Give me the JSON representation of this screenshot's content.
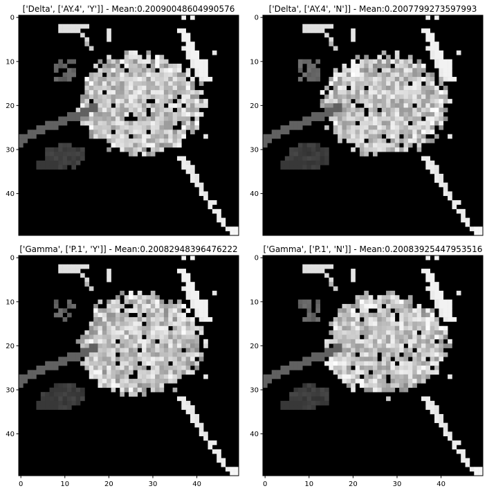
{
  "chart_data": [
    {
      "type": "heatmap",
      "title": "['Delta', ['AY.4', 'Y']] - Mean:0.20090048604990576",
      "xlim": [
        -0.5,
        49.5
      ],
      "ylim": [
        -0.5,
        49.5
      ],
      "y_inverted": true,
      "xticks": [],
      "yticks": [
        0,
        10,
        20,
        30,
        40
      ],
      "colormap": "gray",
      "background_value": 0,
      "pattern": "main",
      "seed": 11
    },
    {
      "type": "heatmap",
      "title": "['Delta', ['AY.4', 'N']] - Mean:0.2007799273597993",
      "xlim": [
        -0.5,
        49.5
      ],
      "ylim": [
        -0.5,
        49.5
      ],
      "y_inverted": true,
      "xticks": [],
      "yticks": [
        0,
        10,
        20,
        30,
        40
      ],
      "colormap": "gray",
      "background_value": 0,
      "pattern": "main",
      "seed": 23
    },
    {
      "type": "heatmap",
      "title": "['Gamma', ['P.1', 'Y']] - Mean:0.20082948396476222",
      "xlim": [
        -0.5,
        49.5
      ],
      "ylim": [
        -0.5,
        49.5
      ],
      "y_inverted": true,
      "xticks": [
        0,
        10,
        20,
        30,
        40
      ],
      "yticks": [
        0,
        10,
        20,
        30,
        40
      ],
      "colormap": "gray",
      "background_value": 0,
      "pattern": "main",
      "seed": 37
    },
    {
      "type": "heatmap",
      "title": "['Gamma', ['P.1', 'N']] - Mean:0.20083925447953516",
      "xlim": [
        -0.5,
        49.5
      ],
      "ylim": [
        -0.5,
        49.5
      ],
      "y_inverted": true,
      "xticks": [
        0,
        10,
        20,
        30,
        40
      ],
      "yticks": [
        0,
        10,
        20,
        30,
        40
      ],
      "colormap": "gray",
      "background_value": 0,
      "pattern": "main",
      "seed": 41
    }
  ]
}
